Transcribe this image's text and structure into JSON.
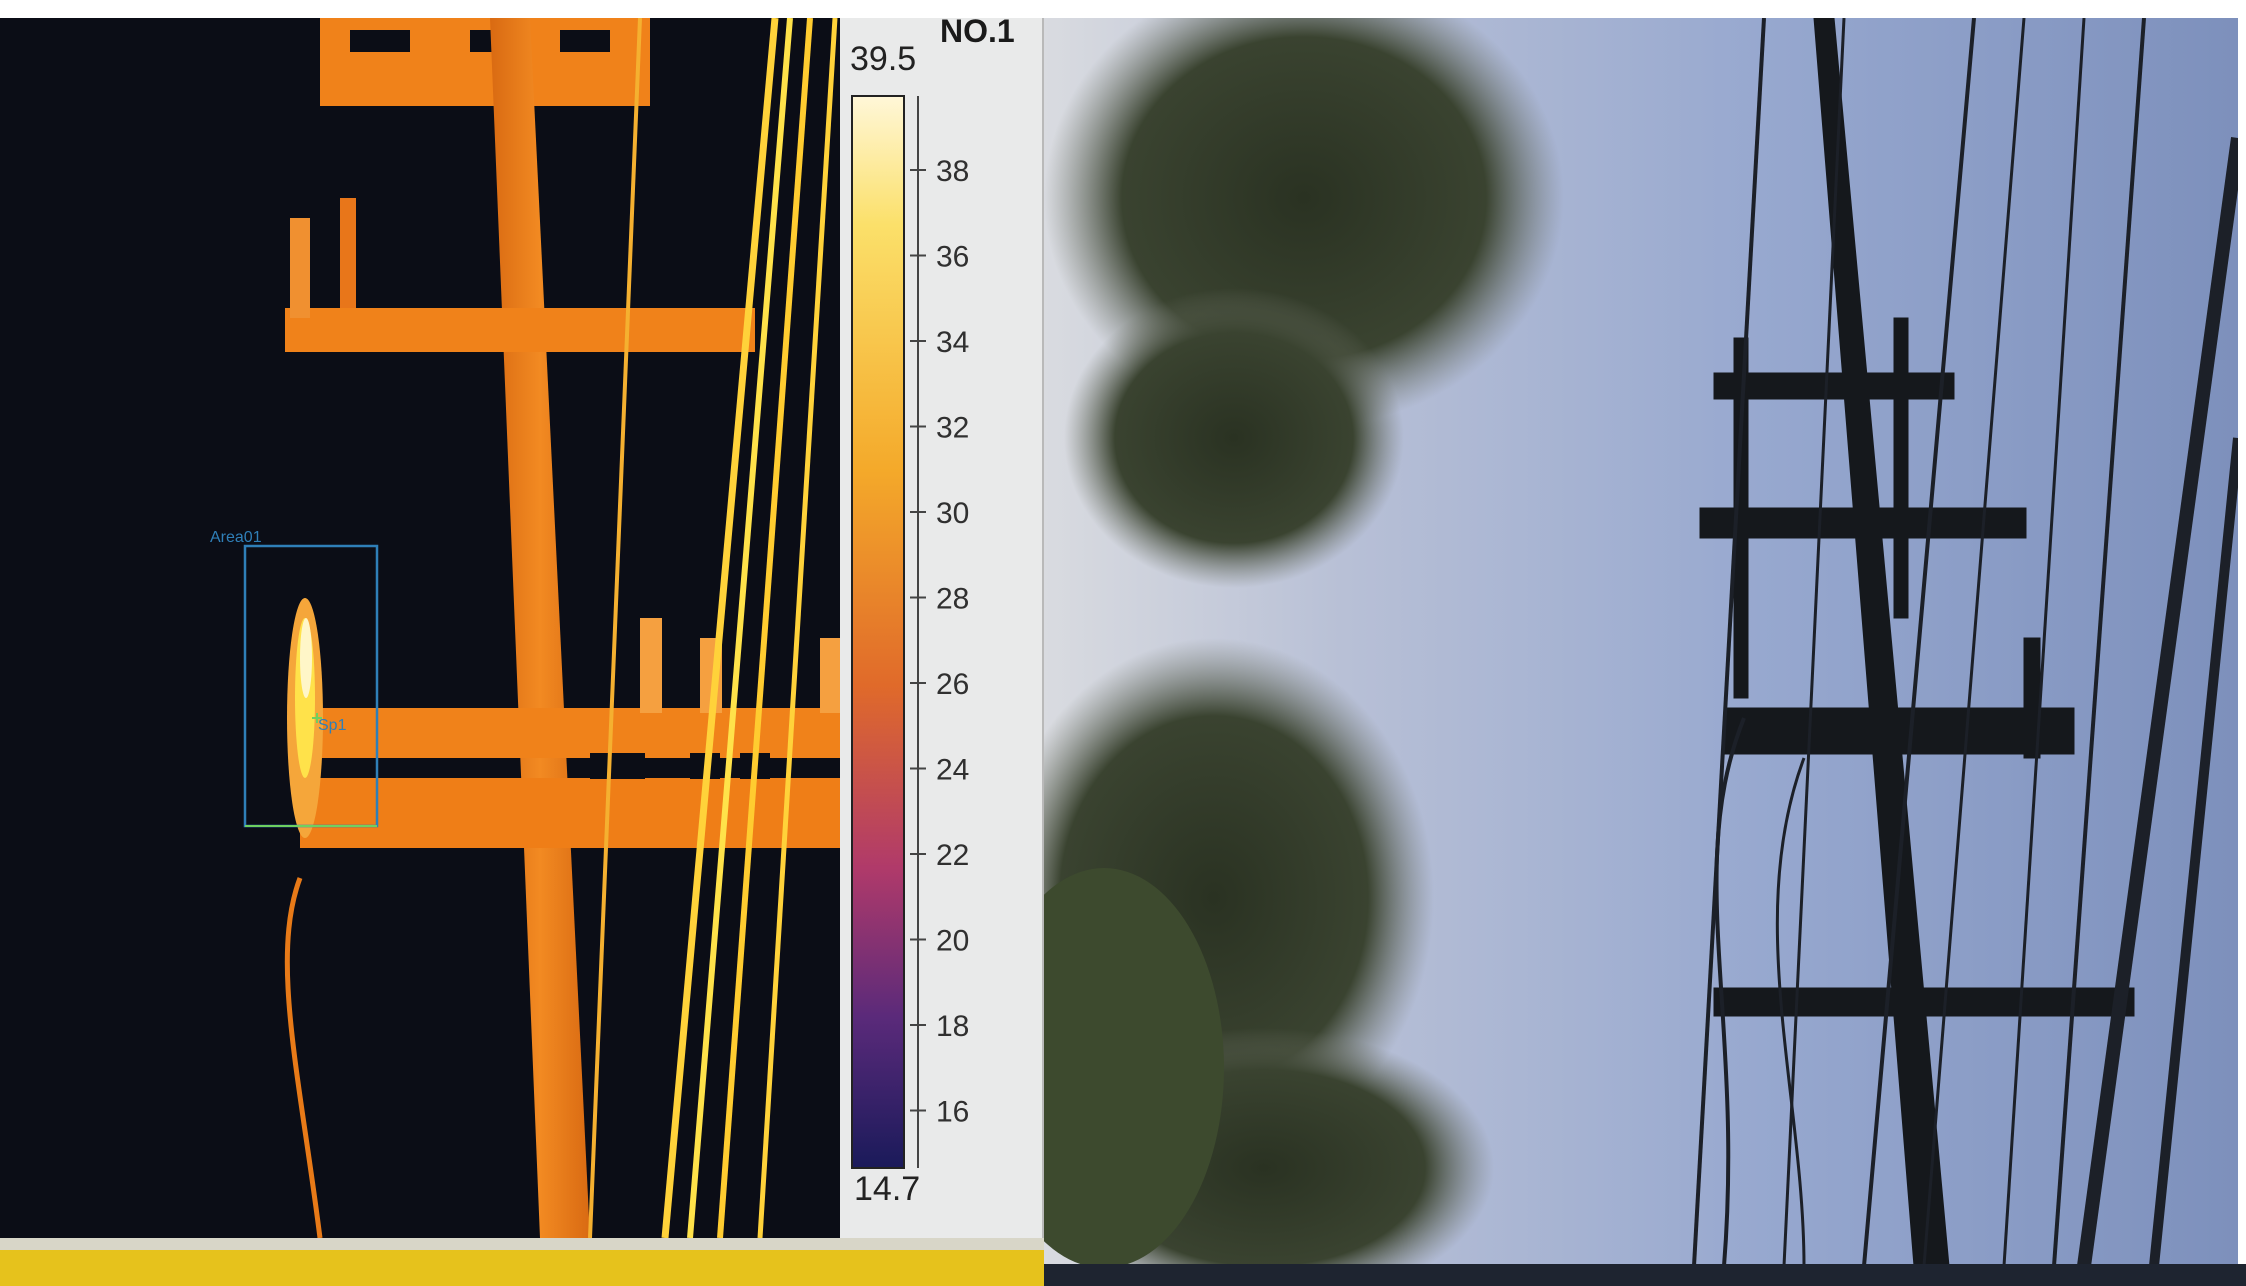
{
  "window": {
    "channel_label": "NO.1"
  },
  "thermal": {
    "palette": {
      "background": "#0b0d16",
      "structure": "#f0821a",
      "hot": "#ffe24a",
      "hottest": "#fff6c8"
    },
    "roi": {
      "name": "Area01",
      "spot": "Sp1",
      "color": "#2f7fb8"
    }
  },
  "scale": {
    "max_label": "39.5",
    "min_label": "14.7",
    "ticks": [
      "38",
      "36",
      "34",
      "32",
      "30",
      "28",
      "26",
      "24",
      "22",
      "20",
      "18",
      "16"
    ]
  },
  "visible": {
    "sky_color": "#8d9fc6",
    "foliage_color": "#2a3222",
    "pole_color": "#15181c"
  }
}
